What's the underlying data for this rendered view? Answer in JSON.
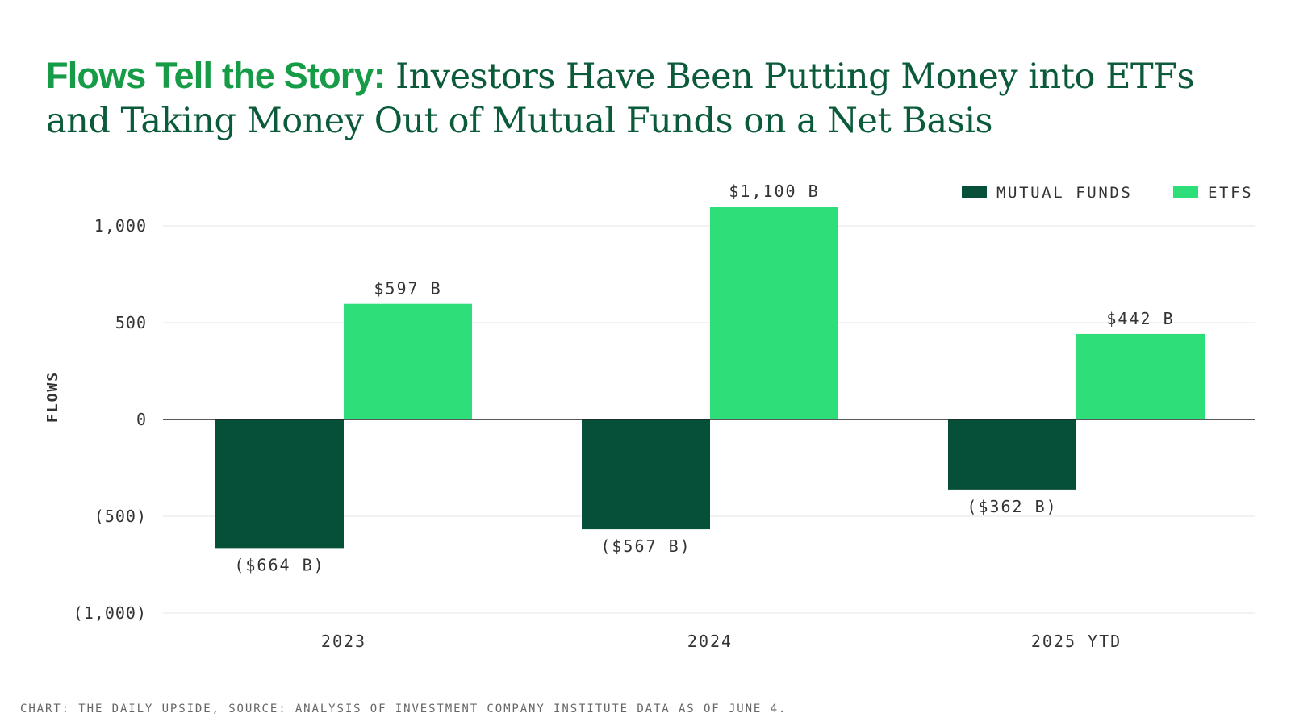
{
  "header": {
    "title_lead": "Flows Tell the Story:",
    "title_rest": " Investors Have Been Putting Money into ETFs and Taking Money Out of Mutual Funds on a Net Basis"
  },
  "chart_data": {
    "type": "bar",
    "title": "Flows Tell the Story: Investors Have Been Putting Money into ETFs and Taking Money Out of Mutual Funds on a Net Basis",
    "categories": [
      "2023",
      "2024",
      "2025 YTD"
    ],
    "series": [
      {
        "name": "MUTUAL FUNDS",
        "color": "#064f38",
        "values": [
          -664,
          -567,
          -362
        ],
        "labels": [
          "($664 B)",
          "($567 B)",
          "($362 B)"
        ]
      },
      {
        "name": "ETFS",
        "color": "#2ede78",
        "values": [
          597,
          1100,
          442
        ],
        "labels": [
          "$597 B",
          "$1,100 B",
          "$442 B"
        ]
      }
    ],
    "xlabel": "",
    "ylabel": "FLOWS",
    "ylim": [
      -1000,
      1100
    ],
    "yticks": [
      1000,
      500,
      0,
      -500,
      -1000
    ],
    "ytick_labels": [
      "1,000",
      "500",
      "0",
      "(500)",
      "(1,000)"
    ],
    "grid": true,
    "legend": "top-right"
  },
  "footer": {
    "source": "CHART: THE DAILY UPSIDE, SOURCE: ANALYSIS OF INVESTMENT COMPANY INSTITUTE DATA AS OF JUNE 4."
  }
}
